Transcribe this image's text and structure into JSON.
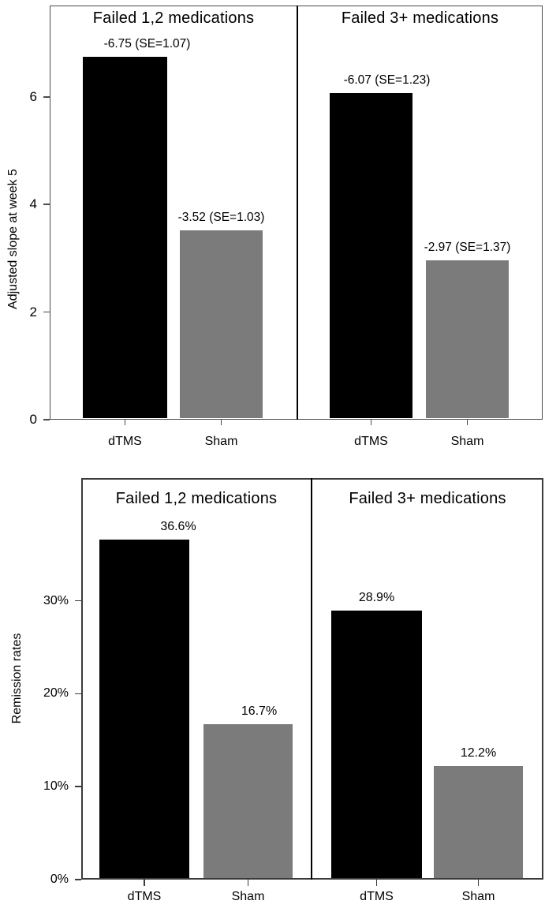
{
  "figure": {
    "background": "#ffffff",
    "series_colors": {
      "dTMS": "#000000",
      "Sham": "#7b7b7b"
    }
  },
  "chart_data": [
    {
      "type": "bar",
      "ylabel": "Adjusted slope at week 5",
      "xlabel": "",
      "ylim": [
        0,
        7.7
      ],
      "grid": false,
      "legend": "none",
      "yticks": [
        {
          "value": 0,
          "label": "0"
        },
        {
          "value": 2,
          "label": "2"
        },
        {
          "value": 4,
          "label": "4"
        },
        {
          "value": 6,
          "label": "6"
        }
      ],
      "panels": [
        {
          "title": "Failed 1,2 medications",
          "bars": [
            {
              "category": "dTMS",
              "value": 6.75,
              "label": "-6.75 (SE=1.07)",
              "color": "#000000"
            },
            {
              "category": "Sham",
              "value": 3.52,
              "label": "-3.52 (SE=1.03)",
              "color": "#7b7b7b"
            }
          ]
        },
        {
          "title": "Failed 3+ medications",
          "bars": [
            {
              "category": "dTMS",
              "value": 6.07,
              "label": "-6.07 (SE=1.23)",
              "color": "#000000"
            },
            {
              "category": "Sham",
              "value": 2.97,
              "label": "-2.97 (SE=1.37)",
              "color": "#7b7b7b"
            }
          ]
        }
      ]
    },
    {
      "type": "bar",
      "ylabel": "Remission rates",
      "xlabel": "",
      "ylim": [
        0,
        43.2
      ],
      "grid": false,
      "legend": "none",
      "yticks": [
        {
          "value": 0,
          "label": "0%"
        },
        {
          "value": 10,
          "label": "10%"
        },
        {
          "value": 20,
          "label": "20%"
        },
        {
          "value": 30,
          "label": "30%"
        }
      ],
      "panels": [
        {
          "title": "Failed 1,2 medications",
          "bars": [
            {
              "category": "dTMS",
              "value": 36.6,
              "label": "36.6%",
              "color": "#000000"
            },
            {
              "category": "Sham",
              "value": 16.7,
              "label": "16.7%",
              "color": "#7b7b7b"
            }
          ]
        },
        {
          "title": "Failed 3+ medications",
          "bars": [
            {
              "category": "dTMS",
              "value": 28.9,
              "label": "28.9%",
              "color": "#000000"
            },
            {
              "category": "Sham",
              "value": 12.2,
              "label": "12.2%",
              "color": "#7b7b7b"
            }
          ]
        }
      ]
    }
  ]
}
